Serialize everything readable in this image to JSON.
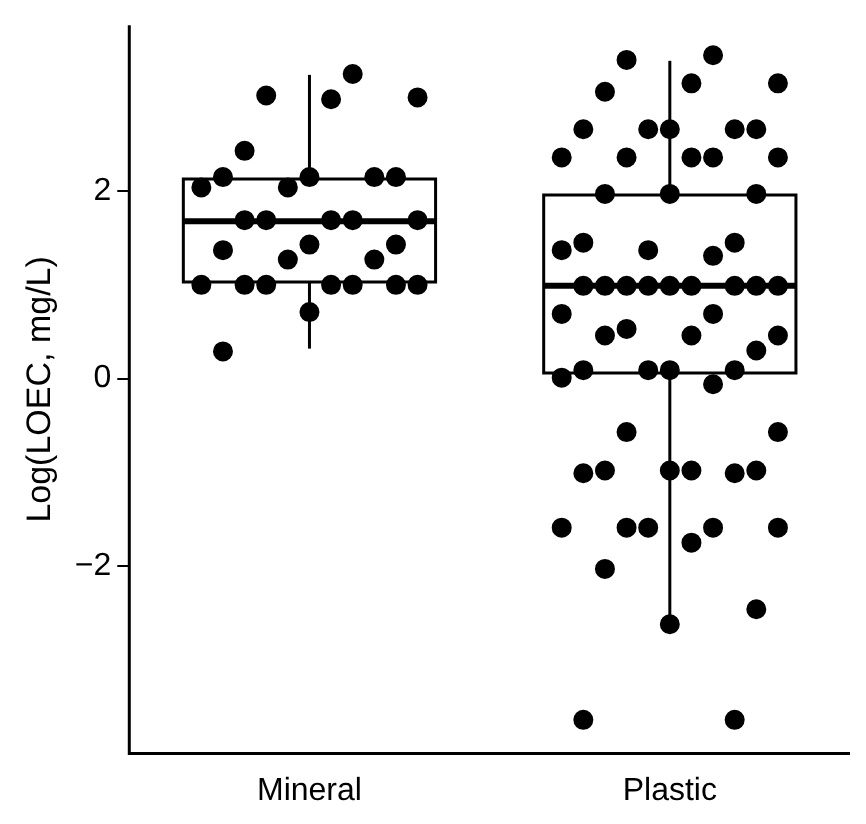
{
  "chart_data": {
    "type": "box",
    "ylabel": "Log(LOEC, mg/L)",
    "categories": [
      "Mineral",
      "Plastic"
    ],
    "boxes": [
      {
        "low": 0.32,
        "q1": 1.03,
        "median": 1.68,
        "q3": 2.13,
        "high": 3.24
      },
      {
        "low": -2.63,
        "q1": 0.06,
        "median": 0.99,
        "q3": 1.96,
        "high": 3.39
      }
    ],
    "series": [
      {
        "type": "scatter",
        "color": "#000000",
        "marker": "circle",
        "x": [
          "Mineral",
          "Mineral",
          "Mineral",
          "Mineral",
          "Mineral",
          "Mineral",
          "Mineral",
          "Mineral",
          "Mineral",
          "Mineral",
          "Mineral",
          "Mineral",
          "Mineral",
          "Mineral",
          "Mineral",
          "Mineral",
          "Mineral",
          "Mineral",
          "Mineral",
          "Mineral",
          "Mineral",
          "Mineral",
          "Mineral",
          "Mineral",
          "Mineral",
          "Mineral",
          "Mineral",
          "Mineral",
          "Mineral",
          "Mineral",
          "Plastic",
          "Plastic",
          "Plastic",
          "Plastic",
          "Plastic",
          "Plastic",
          "Plastic",
          "Plastic",
          "Plastic",
          "Plastic",
          "Plastic",
          "Plastic",
          "Plastic",
          "Plastic",
          "Plastic",
          "Plastic",
          "Plastic",
          "Plastic",
          "Plastic",
          "Plastic",
          "Plastic",
          "Plastic",
          "Plastic",
          "Plastic",
          "Plastic",
          "Plastic",
          "Plastic",
          "Plastic",
          "Plastic",
          "Plastic",
          "Plastic",
          "Plastic",
          "Plastic",
          "Plastic",
          "Plastic",
          "Plastic",
          "Plastic",
          "Plastic",
          "Plastic",
          "Plastic",
          "Plastic",
          "Plastic",
          "Plastic",
          "Plastic",
          "Plastic",
          "Plastic",
          "Plastic",
          "Plastic",
          "Plastic",
          "Plastic",
          "Plastic",
          "Plastic",
          "Plastic",
          "Plastic",
          "Plastic",
          "Plastic",
          "Plastic",
          "Plastic",
          "Plastic",
          "Plastic",
          "Plastic",
          "Plastic",
          "Plastic",
          "Plastic"
        ],
        "values": [
          3.25,
          3.02,
          3.0,
          2.98,
          2.43,
          2.15,
          2.15,
          2.15,
          2.15,
          2.04,
          2.04,
          1.69,
          1.69,
          1.69,
          1.69,
          1.69,
          1.43,
          1.43,
          1.37,
          1.27,
          1.27,
          1.0,
          1.0,
          1.0,
          1.0,
          1.0,
          1.0,
          1.0,
          0.71,
          0.29,
          3.45,
          3.4,
          3.15,
          3.15,
          3.06,
          2.66,
          2.66,
          2.66,
          2.66,
          2.66,
          2.36,
          2.36,
          2.36,
          2.36,
          2.36,
          1.97,
          1.97,
          1.97,
          1.45,
          1.45,
          1.37,
          1.37,
          1.31,
          0.99,
          0.99,
          0.99,
          0.99,
          0.99,
          0.99,
          0.99,
          0.99,
          0.99,
          0.69,
          0.69,
          0.53,
          0.46,
          0.46,
          0.46,
          0.3,
          0.09,
          0.09,
          0.09,
          0.09,
          0.01,
          -0.06,
          -0.57,
          -0.57,
          -0.98,
          -0.98,
          -0.98,
          -0.98,
          -1.01,
          -1.01,
          -1.59,
          -1.59,
          -1.59,
          -1.59,
          -1.59,
          -1.75,
          -2.03,
          -2.46,
          -2.62,
          -3.64,
          -3.64
        ]
      }
    ],
    "ylim": [
      -4.0,
      3.77
    ],
    "yticks": [
      -2,
      0,
      2
    ],
    "grid": false,
    "legend": false
  }
}
